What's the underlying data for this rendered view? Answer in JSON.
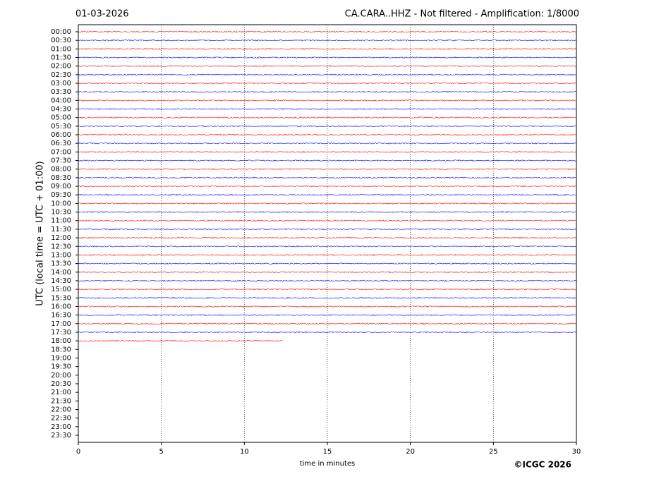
{
  "chart_data": {
    "type": "helicorder",
    "title": "01-03-2026",
    "subtitle": "CA.CARA..HHZ - Not filtered - Amplification: 1/8000",
    "ylabel": "UTC (local time = UTC + 01:00)",
    "xlabel": "time in minutes",
    "credit": "©ICGC 2026",
    "categories": [
      "00:00",
      "00:30",
      "01:00",
      "01:30",
      "02:00",
      "02:30",
      "03:00",
      "03:30",
      "04:00",
      "04:30",
      "05:00",
      "05:30",
      "06:00",
      "06:30",
      "07:00",
      "07:30",
      "08:00",
      "08:30",
      "09:00",
      "09:30",
      "10:00",
      "10:30",
      "11:00",
      "11:30",
      "12:00",
      "12:30",
      "13:00",
      "13:30",
      "14:00",
      "14:30",
      "15:00",
      "15:30",
      "16:00",
      "16:30",
      "17:00",
      "17:30",
      "18:00",
      "18:30",
      "19:00",
      "19:30",
      "20:00",
      "20:30",
      "21:00",
      "21:30",
      "22:00",
      "22:30",
      "23:00",
      "23:30"
    ],
    "values": [
      30,
      30,
      30,
      30,
      30,
      30,
      30,
      30,
      30,
      30,
      30,
      30,
      30,
      30,
      30,
      30,
      30,
      30,
      30,
      30,
      30,
      30,
      30,
      30,
      30,
      30,
      30,
      30,
      30,
      30,
      30,
      30,
      30,
      30,
      30,
      30,
      12.3,
      null,
      null,
      null,
      null,
      null,
      null,
      null,
      null,
      null,
      null,
      null
    ],
    "colors": [
      "#ff0000",
      "#0000ff"
    ],
    "xlim": [
      0,
      30
    ],
    "xticks": [
      0,
      5,
      10,
      15,
      20,
      25,
      30
    ],
    "grid": true
  }
}
